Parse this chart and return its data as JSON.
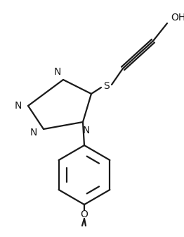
{
  "bg_color": "#ffffff",
  "line_color": "#1a1a1a",
  "text_color": "#1a1a1a",
  "line_width": 1.6,
  "font_size": 10,
  "figsize": [
    2.62,
    3.36
  ],
  "dpi": 100,
  "xlim": [
    0,
    262
  ],
  "ylim": [
    0,
    336
  ]
}
